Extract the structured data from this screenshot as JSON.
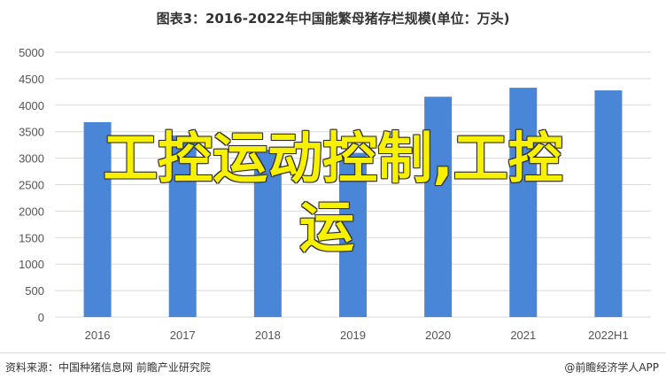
{
  "title": "图表3：2016-2022年中国能繁母猪存栏规模(单位：万头)",
  "overlay_text": {
    "line1": "工控运动控制,工控",
    "line2": "运"
  },
  "footer": {
    "source": "资料来源：中国种猪信息网 前瞻产业研究院",
    "brand": "@前瞻经济学人APP"
  },
  "colors": {
    "bar": "#4a86d8",
    "grid": "#d9d9d9",
    "overlay": "#f7f000"
  },
  "chart_data": {
    "type": "bar",
    "title": "图表3：2016-2022年中国能繁母猪存栏规模(单位：万头)",
    "categories": [
      "2016",
      "2017",
      "2018",
      "2019",
      "2020",
      "2021",
      "2022H1"
    ],
    "values": [
      3680,
      3430,
      3160,
      3100,
      4160,
      4330,
      4280
    ],
    "ylim": [
      0,
      5000
    ],
    "yticks": [
      0,
      500,
      1000,
      1500,
      2000,
      2500,
      3000,
      3500,
      4000,
      4500,
      5000
    ],
    "grid": true
  }
}
